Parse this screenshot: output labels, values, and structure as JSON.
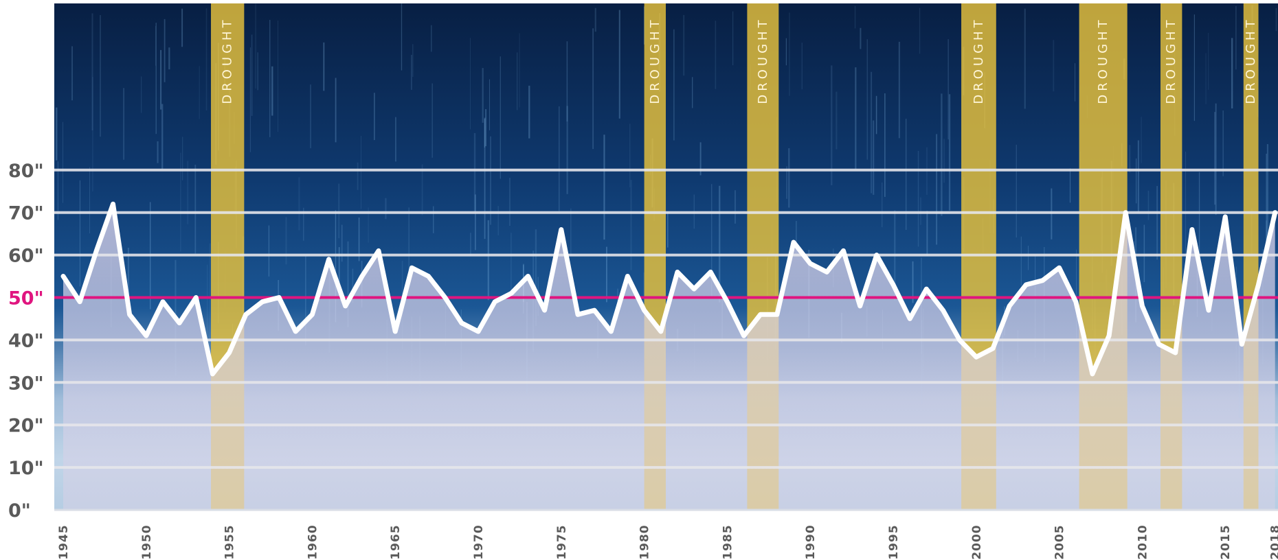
{
  "chart_data": {
    "type": "area",
    "x": [
      1945,
      1946,
      1947,
      1948,
      1949,
      1950,
      1951,
      1952,
      1953,
      1954,
      1955,
      1956,
      1957,
      1958,
      1959,
      1960,
      1961,
      1962,
      1963,
      1964,
      1965,
      1966,
      1967,
      1968,
      1969,
      1970,
      1971,
      1972,
      1973,
      1974,
      1975,
      1976,
      1977,
      1978,
      1979,
      1980,
      1981,
      1982,
      1983,
      1984,
      1985,
      1986,
      1987,
      1988,
      1989,
      1990,
      1991,
      1992,
      1993,
      1994,
      1995,
      1996,
      1997,
      1998,
      1999,
      2000,
      2001,
      2002,
      2003,
      2004,
      2005,
      2006,
      2007,
      2008,
      2009,
      2010,
      2011,
      2012,
      2013,
      2014,
      2015,
      2016,
      2017,
      2018
    ],
    "series": [
      {
        "values": [
          55,
          49,
          61,
          72,
          46,
          41,
          49,
          44,
          50,
          32,
          37,
          46,
          49,
          50,
          42,
          46,
          59,
          48,
          55,
          61,
          42,
          57,
          55,
          50,
          44,
          42,
          49,
          51,
          55,
          47,
          66,
          46,
          47,
          42,
          55,
          47,
          42,
          56,
          52,
          56,
          49,
          41,
          46,
          46,
          63,
          58,
          56,
          61,
          48,
          60,
          53,
          45,
          52,
          47,
          40,
          36,
          38,
          48,
          53,
          54,
          57,
          49,
          32,
          41,
          70,
          48,
          39,
          37,
          66,
          47,
          69,
          39,
          53,
          70
        ]
      }
    ],
    "reference_line": {
      "value": 50,
      "color": "#e0157f"
    },
    "drought_periods": [
      {
        "label": "DROUGHT",
        "start": 1953.9,
        "end": 1955.9
      },
      {
        "label": "DROUGHT",
        "start": 1980.0,
        "end": 1981.3
      },
      {
        "label": "DROUGHT",
        "start": 1986.2,
        "end": 1988.1
      },
      {
        "label": "DROUGHT",
        "start": 1999.1,
        "end": 2001.2
      },
      {
        "label": "DROUGHT",
        "start": 2006.2,
        "end": 2009.1
      },
      {
        "label": "DROUGHT",
        "start": 2011.1,
        "end": 2012.4
      },
      {
        "label": "DROUGHT",
        "start": 2016.1,
        "end": 2017.0
      }
    ],
    "y_ticks": [
      "0\"",
      "10\"",
      "20\"",
      "30\"",
      "40\"",
      "50\"",
      "60\"",
      "70\"",
      "80\""
    ],
    "y_tick_values": [
      0,
      10,
      20,
      30,
      40,
      50,
      60,
      70,
      80
    ],
    "x_ticks": [
      "1945",
      "1950",
      "1955",
      "1960",
      "1965",
      "1970",
      "1975",
      "1980",
      "1985",
      "1990",
      "1995",
      "2000",
      "2005",
      "2010",
      "2015",
      "2018"
    ],
    "x_tick_values": [
      1945,
      1950,
      1955,
      1960,
      1965,
      1970,
      1975,
      1980,
      1985,
      1990,
      1995,
      2000,
      2005,
      2010,
      2015,
      2018
    ],
    "ylim": [
      0,
      80
    ],
    "xlim": [
      1945,
      2018
    ],
    "grid": true,
    "colors": {
      "line": "#ffffff",
      "area_fill": "#d4cee6",
      "drought_band": "#e8c23c",
      "grid": "#e6e6ea",
      "sky_top": "#0a2c5a",
      "sky_mid": "#174f8c",
      "water": "#a9c6de"
    }
  }
}
